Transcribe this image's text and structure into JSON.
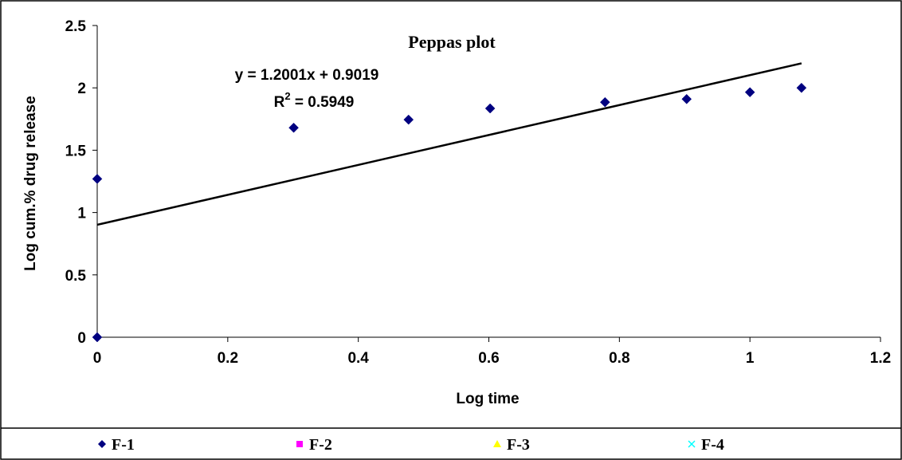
{
  "chart_data": {
    "type": "scatter",
    "title": "Peppas plot",
    "xlabel": "Log time",
    "ylabel": "Log cum.% drug release",
    "xlim": [
      0,
      1.2
    ],
    "ylim": [
      0,
      2.5
    ],
    "x_ticks": [
      "0",
      "0.2",
      "0.4",
      "0.6",
      "0.8",
      "1",
      "1.2"
    ],
    "y_ticks": [
      "0",
      "0.5",
      "1",
      "1.5",
      "2",
      "2.5"
    ],
    "grid": false,
    "legend_position": "bottom",
    "series": [
      {
        "name": "F-1",
        "color": "#000080",
        "marker": "diamond",
        "points": [
          {
            "x": 0,
            "y": 0
          },
          {
            "x": 0,
            "y": 1.27
          },
          {
            "x": 0.301,
            "y": 1.68
          },
          {
            "x": 0.477,
            "y": 1.745
          },
          {
            "x": 0.602,
            "y": 1.835
          },
          {
            "x": 0.778,
            "y": 1.885
          },
          {
            "x": 0.903,
            "y": 1.91
          },
          {
            "x": 1.0,
            "y": 1.965
          },
          {
            "x": 1.079,
            "y": 2.0
          }
        ]
      },
      {
        "name": "F-2",
        "color": "#ff00ff",
        "marker": "square",
        "points": []
      },
      {
        "name": "F-3",
        "color": "#ffff00",
        "marker": "triangle",
        "points": []
      },
      {
        "name": "F-4",
        "color": "#00ffff",
        "marker": "x",
        "points": []
      }
    ],
    "trendline": {
      "slope": 1.2001,
      "intercept": 0.9019,
      "x_range": [
        0,
        1.079
      ],
      "color": "#000000",
      "equation_label": "y = 1.2001x + 0.9019",
      "r2_prefix": "R",
      "r2_exponent": "2",
      "r2_value": " = 0.5949"
    }
  }
}
